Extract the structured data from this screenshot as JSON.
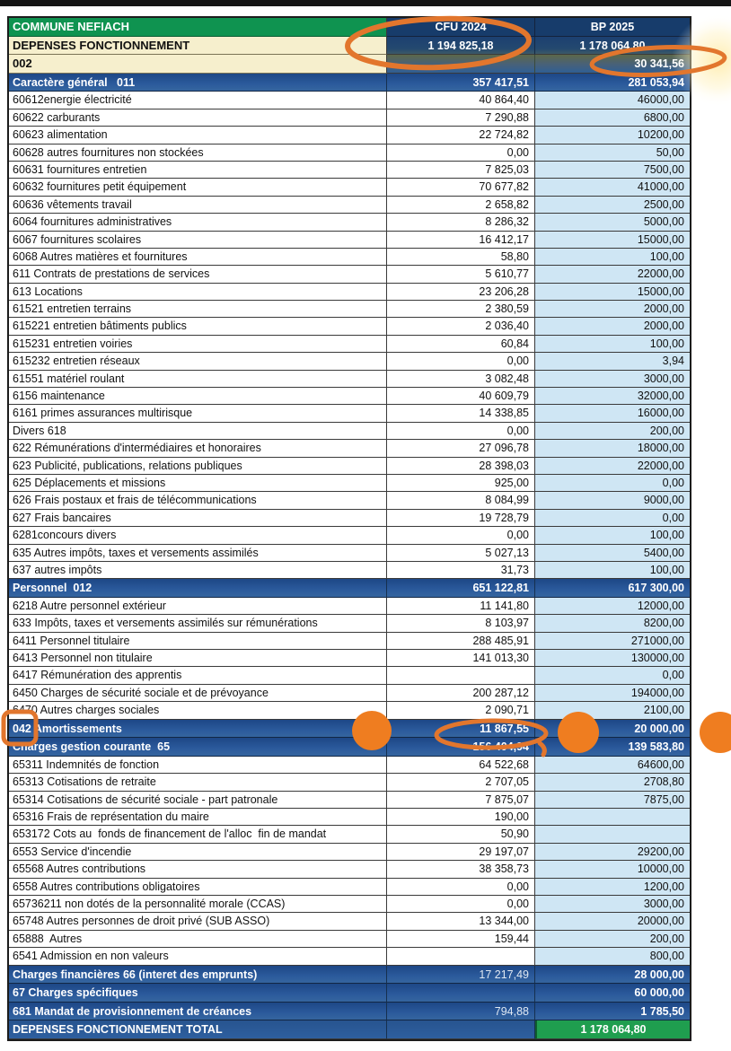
{
  "document": {
    "type": "scanned budget table",
    "commune": "COMMUNE NEFIACH"
  },
  "table": {
    "header": {
      "title": "COMMUNE NEFIACH",
      "col_cfu": "CFU 2024",
      "col_bp": "BP 2025"
    },
    "rows": [
      {
        "kind": "hdr1",
        "label": "DEPENSES FONCTIONNEMENT",
        "cfu": "1 194 825,18",
        "bp": "1 178 064,80"
      },
      {
        "kind": "hdr2",
        "label": "002",
        "cfu": "",
        "bp": "30 341,56"
      },
      {
        "kind": "section",
        "label": "Caractère général   011",
        "cfu": "357 417,51",
        "bp": "281 053,94"
      },
      {
        "kind": "data",
        "label": "60612energie électricité",
        "cfu": "40 864,40",
        "bp": "46000,00"
      },
      {
        "kind": "data",
        "label": "60622 carburants",
        "cfu": "7 290,88",
        "bp": "6800,00"
      },
      {
        "kind": "data",
        "label": "60623 alimentation",
        "cfu": "22 724,82",
        "bp": "10200,00"
      },
      {
        "kind": "data",
        "label": "60628 autres fournitures non stockées",
        "cfu": "0,00",
        "bp": "50,00"
      },
      {
        "kind": "data",
        "label": "60631 fournitures entretien",
        "cfu": "7 825,03",
        "bp": "7500,00"
      },
      {
        "kind": "data",
        "label": "60632 fournitures petit équipement",
        "cfu": "70 677,82",
        "bp": "41000,00"
      },
      {
        "kind": "data",
        "label": "60636 vêtements travail",
        "cfu": "2 658,82",
        "bp": "2500,00"
      },
      {
        "kind": "data",
        "label": "6064 fournitures administratives",
        "cfu": "8 286,32",
        "bp": "5000,00"
      },
      {
        "kind": "data",
        "label": "6067 fournitures scolaires",
        "cfu": "16 412,17",
        "bp": "15000,00"
      },
      {
        "kind": "data",
        "label": "6068 Autres matières et fournitures",
        "cfu": "58,80",
        "bp": "100,00"
      },
      {
        "kind": "data",
        "label": "611 Contrats de prestations de services",
        "cfu": "5 610,77",
        "bp": "22000,00"
      },
      {
        "kind": "data",
        "label": "613 Locations",
        "cfu": "23 206,28",
        "bp": "15000,00"
      },
      {
        "kind": "data",
        "label": "61521 entretien terrains",
        "cfu": "2 380,59",
        "bp": "2000,00"
      },
      {
        "kind": "data",
        "label": "615221 entretien bâtiments publics",
        "cfu": "2 036,40",
        "bp": "2000,00"
      },
      {
        "kind": "data",
        "label": "615231 entretien voiries",
        "cfu": "60,84",
        "bp": "100,00"
      },
      {
        "kind": "data",
        "label": "615232 entretien réseaux",
        "cfu": "0,00",
        "bp": "3,94"
      },
      {
        "kind": "data",
        "label": "61551 matériel roulant",
        "cfu": "3 082,48",
        "bp": "3000,00"
      },
      {
        "kind": "data",
        "label": "6156 maintenance",
        "cfu": "40 609,79",
        "bp": "32000,00"
      },
      {
        "kind": "data",
        "label": "6161 primes assurances multirisque",
        "cfu": "14 338,85",
        "bp": "16000,00"
      },
      {
        "kind": "data",
        "label": "Divers 618",
        "cfu": "0,00",
        "bp": "200,00"
      },
      {
        "kind": "data",
        "label": "622 Rémunérations d'intermédiaires et honoraires",
        "cfu": "27 096,78",
        "bp": "18000,00"
      },
      {
        "kind": "data",
        "label": "623 Publicité, publications, relations publiques",
        "cfu": "28 398,03",
        "bp": "22000,00"
      },
      {
        "kind": "data",
        "label": "625 Déplacements et missions",
        "cfu": "925,00",
        "bp": "0,00"
      },
      {
        "kind": "data",
        "label": "626 Frais postaux et frais de télécommunications",
        "cfu": "8 084,99",
        "bp": "9000,00"
      },
      {
        "kind": "data",
        "label": "627 Frais bancaires",
        "cfu": "19 728,79",
        "bp": "0,00"
      },
      {
        "kind": "data",
        "label": "6281concours divers",
        "cfu": "0,00",
        "bp": "100,00"
      },
      {
        "kind": "data",
        "label": "635 Autres impôts, taxes et versements assimilés",
        "cfu": "5 027,13",
        "bp": "5400,00"
      },
      {
        "kind": "data",
        "label": "637 autres impôts",
        "cfu": "31,73",
        "bp": "100,00"
      },
      {
        "kind": "section",
        "label": "Personnel  012",
        "cfu": "651 122,81",
        "bp": "617 300,00"
      },
      {
        "kind": "data",
        "label": "6218 Autre personnel extérieur",
        "cfu": "11 141,80",
        "bp": "12000,00"
      },
      {
        "kind": "data",
        "label": "633 Impôts, taxes et versements assimilés sur rémunérations",
        "cfu": "8 103,97",
        "bp": "8200,00"
      },
      {
        "kind": "data",
        "label": "6411 Personnel titulaire",
        "cfu": "288 485,91",
        "bp": "271000,00"
      },
      {
        "kind": "data",
        "label": "6413 Personnel non titulaire",
        "cfu": "141 013,30",
        "bp": "130000,00"
      },
      {
        "kind": "data",
        "label": "6417 Rémunération des apprentis",
        "cfu": "",
        "bp": "0,00"
      },
      {
        "kind": "data",
        "label": "6450 Charges de sécurité sociale et de prévoyance",
        "cfu": "200 287,12",
        "bp": "194000,00"
      },
      {
        "kind": "data",
        "label": "6470 Autres charges sociales",
        "cfu": "2 090,71",
        "bp": "2100,00"
      },
      {
        "kind": "section",
        "label": "042 Amortissements",
        "cfu": "11 867,55",
        "bp": "20 000,00"
      },
      {
        "kind": "section",
        "label": "Charges gestion courante  65",
        "cfu": "156 404,94",
        "bp": "139 583,80"
      },
      {
        "kind": "data",
        "label": "65311 Indemnités de fonction",
        "cfu": "64 522,68",
        "bp": "64600,00"
      },
      {
        "kind": "data",
        "label": "65313 Cotisations de retraite",
        "cfu": "2 707,05",
        "bp": "2708,80"
      },
      {
        "kind": "data",
        "label": "65314 Cotisations de sécurité sociale - part patronale",
        "cfu": "7 875,07",
        "bp": "7875,00"
      },
      {
        "kind": "data",
        "label": "65316 Frais de représentation du maire",
        "cfu": "190,00",
        "bp": ""
      },
      {
        "kind": "data",
        "label": "653172 Cots au  fonds de financement de l'alloc  fin de mandat",
        "cfu": "50,90",
        "bp": ""
      },
      {
        "kind": "data",
        "label": "6553 Service d'incendie",
        "cfu": "29 197,07",
        "bp": "29200,00"
      },
      {
        "kind": "data",
        "label": "65568 Autres contributions",
        "cfu": "38 358,73",
        "bp": "10000,00"
      },
      {
        "kind": "data",
        "label": "6558 Autres contributions obligatoires",
        "cfu": "0,00",
        "bp": "1200,00"
      },
      {
        "kind": "data",
        "label": "65736211 non dotés de la personnalité morale (CCAS)",
        "cfu": "0,00",
        "bp": "3000,00"
      },
      {
        "kind": "data",
        "label": "65748 Autres personnes de droit privé (SUB ASSO)",
        "cfu": "13 344,00",
        "bp": "20000,00"
      },
      {
        "kind": "data",
        "label": "65888  Autres",
        "cfu": "159,44",
        "bp": "200,00"
      },
      {
        "kind": "data",
        "label": "6541 Admission en non valeurs",
        "cfu": "",
        "bp": "800,00"
      },
      {
        "kind": "section",
        "label": "Charges financières 66 (interet des emprunts)",
        "cfu": "17 217,49",
        "bp": "28 000,00",
        "cfu_light": true
      },
      {
        "kind": "section",
        "label": "67 Charges spécifiques",
        "cfu": "",
        "bp": "60 000,00"
      },
      {
        "kind": "section",
        "label": "681 Mandat de provisionnement de créances",
        "cfu": "794,88",
        "bp": "1 785,50",
        "cfu_light": true
      },
      {
        "kind": "total",
        "label": "DEPENSES FONCTIONNEMENT TOTAL",
        "cfu": "",
        "bp": "1 178 064,80"
      }
    ]
  },
  "annotations": {
    "pen_color": "#e2762d",
    "dot_color": "#ef7d20",
    "glow_color": "#ffe9a0",
    "items": [
      "hand-drawn ellipse around CFU 2024 header and total 1 194 825,18",
      "hand-drawn ellipse around BP 2025 value 30 341,56",
      "hand-drawn box around account code 042",
      "hand-drawn ellipse around value 11 867,55",
      "orange dot left of 042 row CFU cell",
      "orange dot between CFU and BP on 042 row",
      "orange dot at right page edge on 042 row"
    ]
  }
}
